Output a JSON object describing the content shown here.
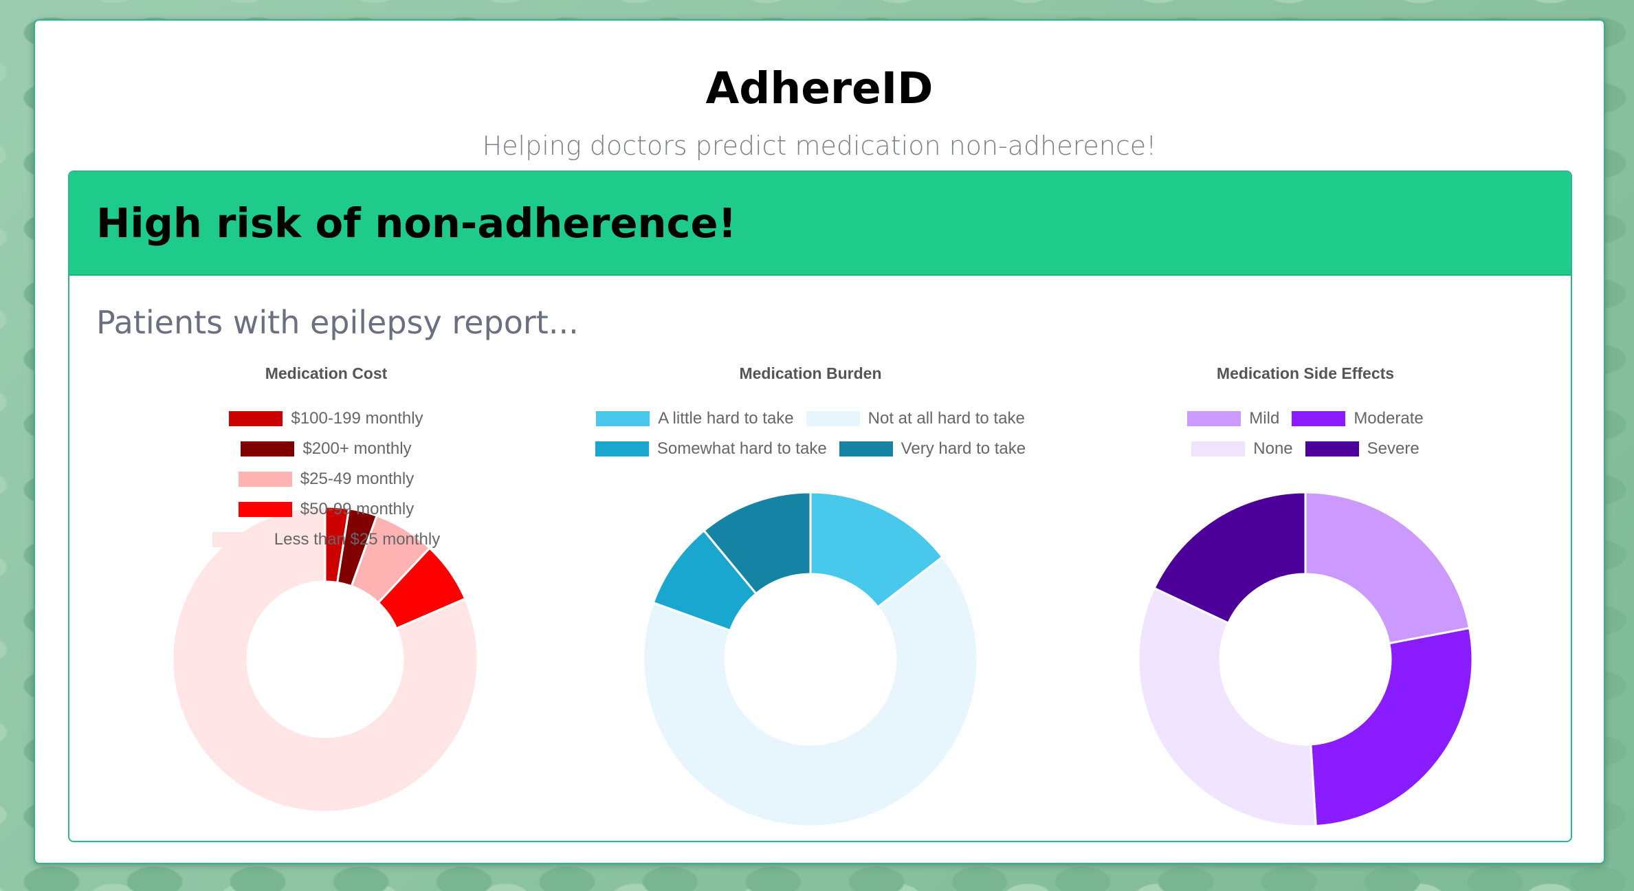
{
  "app": {
    "title": "AdhereID",
    "subtitle": "Helping doctors predict medication non-adherence!"
  },
  "result": {
    "risk_heading": "High risk of non-adherence!",
    "lead_text": "Patients with epilepsy report..."
  },
  "colors": {
    "accent": "#1fcb8b",
    "border": "#2db786"
  },
  "chart_data": [
    {
      "type": "doughnut",
      "title": "Medication Cost",
      "legend_position": "top",
      "categories": [
        "$100-199 monthly",
        "$200+ monthly",
        "$25-49 monthly",
        "$50-99 monthly",
        "Less than $25 monthly"
      ],
      "values": [
        2.5,
        3,
        6.5,
        6.5,
        81.5
      ],
      "colors": [
        "#cc0000",
        "#800000",
        "#ffb3b3",
        "#ff0000",
        "#ffe5e5"
      ]
    },
    {
      "type": "doughnut",
      "title": "Medication Burden",
      "legend_position": "top",
      "categories": [
        "A little hard to take",
        "Not at all hard to take",
        "Somewhat hard to take",
        "Very hard to take"
      ],
      "values": [
        14.5,
        66,
        8.5,
        11
      ],
      "colors": [
        "#48c9eb",
        "#e7f6fc",
        "#1aa7cf",
        "#1583a3"
      ]
    },
    {
      "type": "doughnut",
      "title": "Medication Side Effects",
      "legend_position": "top",
      "categories": [
        "Mild",
        "Moderate",
        "None",
        "Severe"
      ],
      "values": [
        22,
        27,
        33,
        18
      ],
      "colors": [
        "#cc99ff",
        "#8a1cff",
        "#f0e4ff",
        "#4c0099"
      ]
    }
  ]
}
